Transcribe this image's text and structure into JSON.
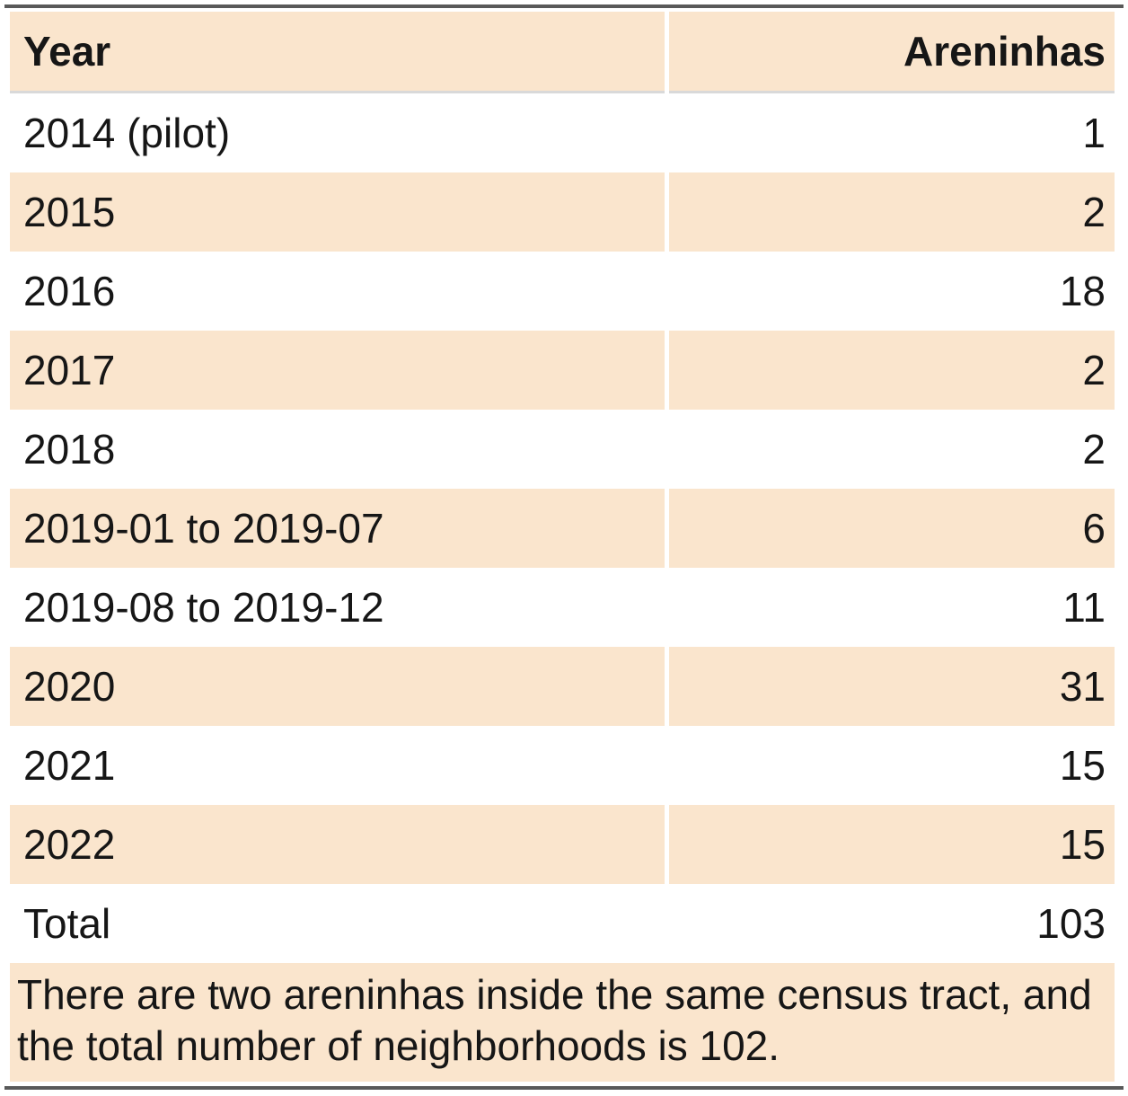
{
  "table": {
    "columns": [
      {
        "label": "Year",
        "align": "left"
      },
      {
        "label": "Areninhas",
        "align": "right"
      }
    ],
    "rows": [
      {
        "year": "2014 (pilot)",
        "areninhas": "1"
      },
      {
        "year": "2015",
        "areninhas": "2"
      },
      {
        "year": "2016",
        "areninhas": "18"
      },
      {
        "year": "2017",
        "areninhas": "2"
      },
      {
        "year": "2018",
        "areninhas": "2"
      },
      {
        "year": "2019-01 to 2019-07",
        "areninhas": "6"
      },
      {
        "year": "2019-08 to 2019-12",
        "areninhas": "11"
      },
      {
        "year": "2020",
        "areninhas": "31"
      },
      {
        "year": "2021",
        "areninhas": "15"
      },
      {
        "year": "2022",
        "areninhas": "15"
      },
      {
        "year": "Total",
        "areninhas": "103"
      }
    ],
    "footnote": "There are two areninhas inside the same census tract, and the total number of neighborhoods is 102."
  },
  "colors": {
    "stripe_background": "#fae5cd",
    "plain_background": "#ffffff",
    "heavy_rule": "#595959",
    "light_rule": "#d9d9d9",
    "text": "#161616"
  },
  "chart_data": {
    "type": "table",
    "title": "",
    "columns": [
      "Year",
      "Areninhas"
    ],
    "categories": [
      "2014 (pilot)",
      "2015",
      "2016",
      "2017",
      "2018",
      "2019-01 to 2019-07",
      "2019-08 to 2019-12",
      "2020",
      "2021",
      "2022"
    ],
    "values": [
      1,
      2,
      18,
      2,
      2,
      6,
      11,
      31,
      15,
      15
    ],
    "total_label": "Total",
    "total_value": 103,
    "footnote": "There are two areninhas inside the same census tract, and the total number of neighborhoods is 102.",
    "layout": {
      "striped_rows": true,
      "value_align": "right",
      "category_align": "left"
    }
  }
}
